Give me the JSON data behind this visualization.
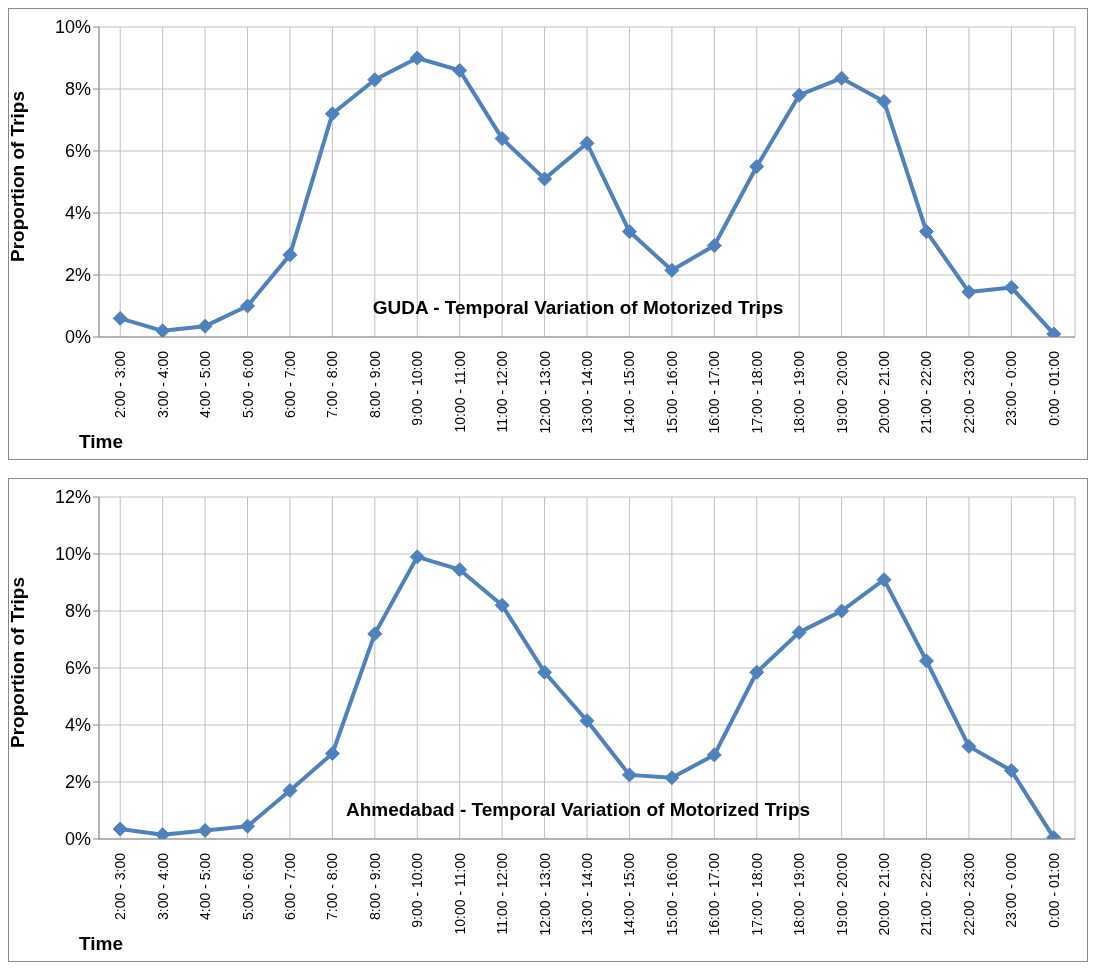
{
  "chart_data": [
    {
      "type": "line",
      "title": "GUDA - Temporal Variation of Motorized Trips",
      "xlabel": "Time",
      "ylabel": "Proportion of Trips",
      "categories": [
        "2:00 - 3:00",
        "3:00 - 4:00",
        "4:00 - 5:00",
        "5:00 - 6:00",
        "6:00 - 7:00",
        "7:00 - 8:00",
        "8:00 - 9:00",
        "9:00 - 10:00",
        "10:00 - 11:00",
        "11:00 - 12:00",
        "12:00 - 13:00",
        "13:00 - 14:00",
        "14:00 - 15:00",
        "15:00 - 16:00",
        "16:00 - 17:00",
        "17:00 - 18:00",
        "18:00 - 19:00",
        "19:00 - 20:00",
        "20:00 - 21:00",
        "21:00 - 22:00",
        "22:00 - 23:00",
        "23:00 - 0:00",
        "0:00 - 01:00"
      ],
      "series": [
        {
          "color": "#4f81bd",
          "values": [
            0.6,
            0.2,
            0.35,
            1.0,
            2.65,
            7.2,
            8.3,
            9.0,
            8.6,
            6.4,
            5.1,
            6.25,
            3.4,
            2.15,
            2.95,
            5.5,
            7.8,
            8.35,
            7.6,
            3.4,
            1.45,
            1.6,
            0.1
          ]
        }
      ],
      "ylim": [
        0,
        10
      ],
      "yticks": [
        {
          "value": 0,
          "label": "0%"
        },
        {
          "value": 2,
          "label": "2%"
        },
        {
          "value": 4,
          "label": "4%"
        },
        {
          "value": 6,
          "label": "6%"
        },
        {
          "value": 8,
          "label": "8%"
        },
        {
          "value": 10,
          "label": "10%"
        }
      ],
      "grid": true,
      "legend": false,
      "marker": "diamond",
      "line_style": "solid"
    },
    {
      "type": "line",
      "title": "Ahmedabad - Temporal Variation of Motorized Trips",
      "xlabel": "Time",
      "ylabel": "Proportion of Trips",
      "categories": [
        "2:00 - 3:00",
        "3:00 - 4:00",
        "4:00 - 5:00",
        "5:00 - 6:00",
        "6:00 - 7:00",
        "7:00 - 8:00",
        "8:00 - 9:00",
        "9:00 - 10:00",
        "10:00 - 11:00",
        "11:00 - 12:00",
        "12:00 - 13:00",
        "13:00 - 14:00",
        "14:00 - 15:00",
        "15:00 - 16:00",
        "16:00 - 17:00",
        "17:00 - 18:00",
        "18:00 - 19:00",
        "19:00 - 20:00",
        "20:00 - 21:00",
        "21:00 - 22:00",
        "22:00 - 23:00",
        "23:00 - 0:00",
        "0:00 - 01:00"
      ],
      "series": [
        {
          "color": "#4f81bd",
          "values": [
            0.35,
            0.15,
            0.3,
            0.45,
            1.7,
            3.0,
            7.2,
            9.9,
            9.45,
            8.2,
            5.85,
            4.15,
            2.25,
            2.15,
            2.95,
            5.85,
            7.25,
            8.0,
            9.1,
            6.25,
            3.25,
            2.4,
            0.05
          ]
        }
      ],
      "ylim": [
        0,
        12
      ],
      "yticks": [
        {
          "value": 0,
          "label": "0%"
        },
        {
          "value": 2,
          "label": "2%"
        },
        {
          "value": 4,
          "label": "4%"
        },
        {
          "value": 6,
          "label": "6%"
        },
        {
          "value": 8,
          "label": "8%"
        },
        {
          "value": 10,
          "label": "10%"
        },
        {
          "value": 12,
          "label": "12%"
        }
      ],
      "grid": true,
      "legend": false,
      "marker": "diamond",
      "line_style": "solid"
    }
  ]
}
